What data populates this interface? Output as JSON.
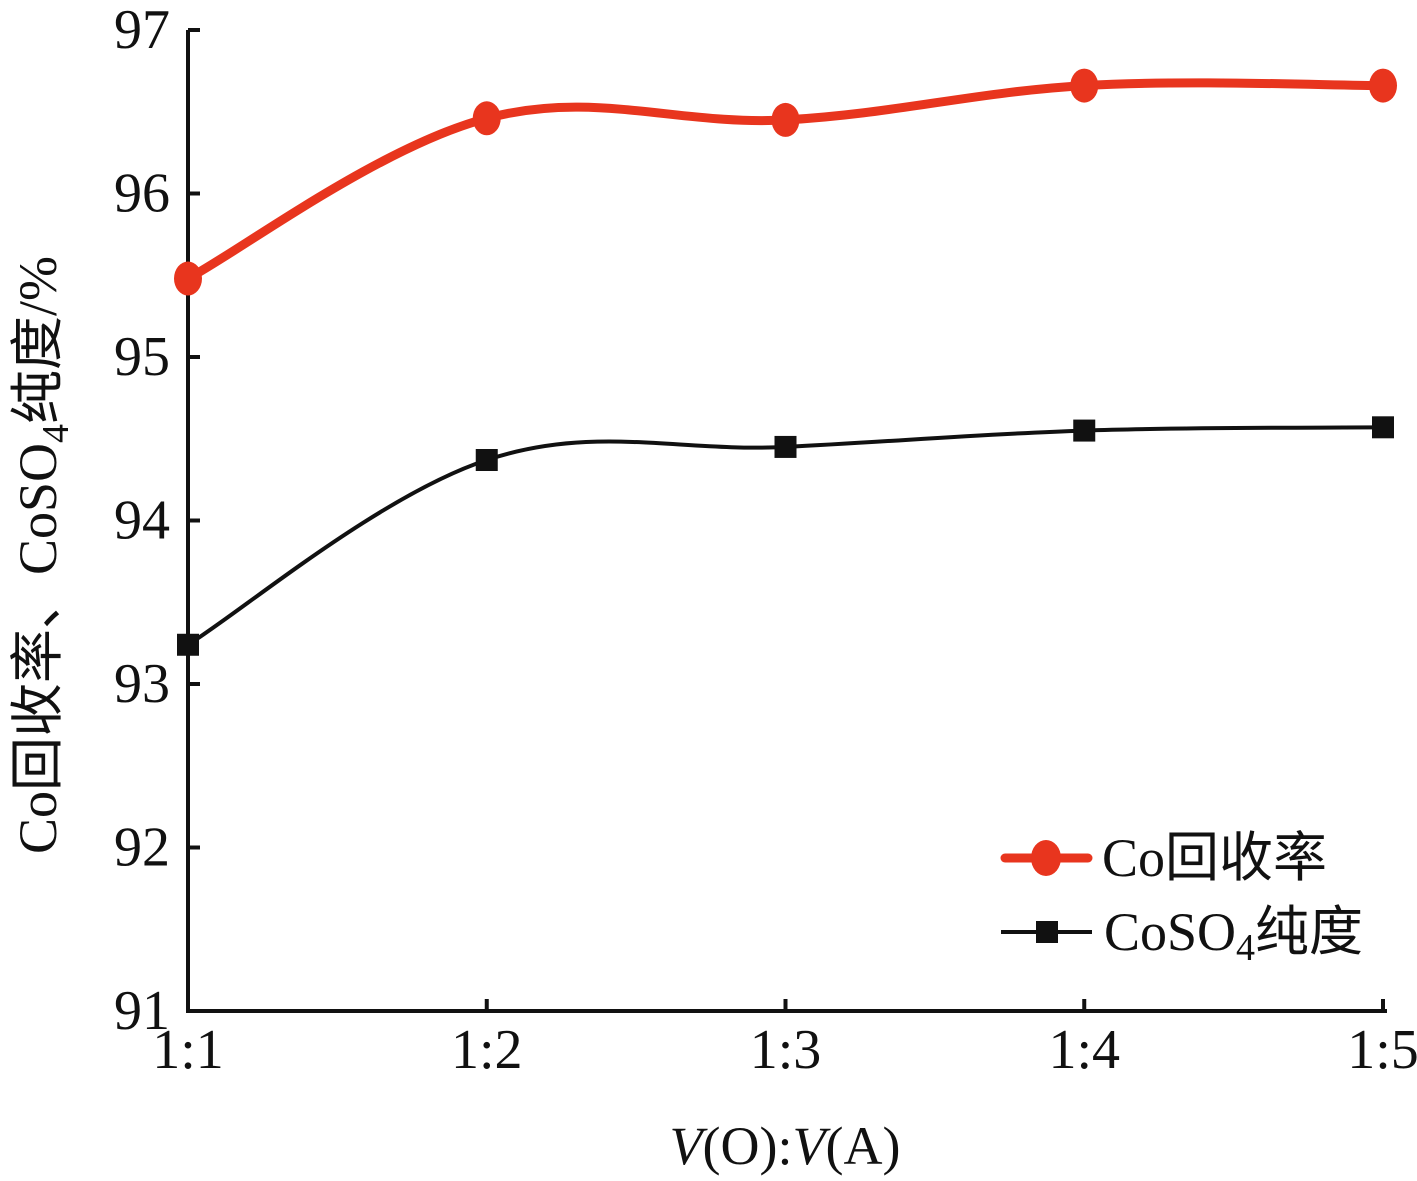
{
  "chart_data": {
    "type": "line",
    "categories": [
      "1:1",
      "1:2",
      "1:3",
      "1:4",
      "1:5"
    ],
    "ylim": [
      91,
      97
    ],
    "yticks": [
      91,
      92,
      93,
      94,
      95,
      96,
      97
    ],
    "grid": false,
    "legend_position": "bottom-right",
    "xlabel": {
      "v1": "V",
      "o": "(O)",
      "colon": ":",
      "v2": "V",
      "a": "(A)"
    },
    "ylabel": {
      "main": "Co回收率、CoSO",
      "sub": "4",
      "tail": "纯度/%"
    },
    "series": [
      {
        "name": "Co回收率",
        "values": [
          95.48,
          96.46,
          96.45,
          96.66,
          96.66
        ],
        "color": "#e8351e",
        "marker": "circle-icon"
      },
      {
        "name": "CoSO4纯度",
        "legend_main": "CoSO",
        "legend_sub": "4",
        "legend_tail": "纯度",
        "values": [
          93.24,
          94.37,
          94.45,
          94.55,
          94.57
        ],
        "color": "#111111",
        "marker": "square-icon"
      }
    ]
  }
}
